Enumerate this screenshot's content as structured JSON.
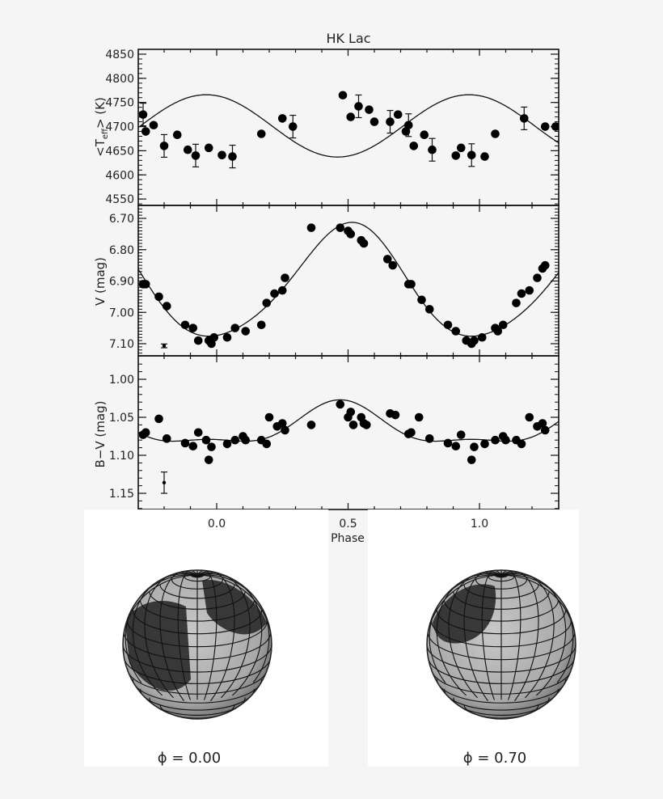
{
  "figure": {
    "title": "HK Lac",
    "xlabel": "Phase",
    "x_ticks": [
      "0.0",
      "0.5",
      "1.0"
    ],
    "x_tick_values": [
      0.0,
      0.5,
      1.0
    ],
    "xlim": [
      -0.3,
      1.3
    ]
  },
  "panels": [
    {
      "id": "teff",
      "ylabel_main": "<T",
      "ylabel_sub": "eff",
      "ylabel_tail": "> (K)",
      "y_ticks": [
        "4850",
        "4800",
        "4750",
        "4700",
        "4650",
        "4600",
        "4550"
      ]
    },
    {
      "id": "v",
      "ylabel": "V (mag)",
      "y_ticks": [
        "6.70",
        "6.80",
        "6.90",
        "7.00",
        "7.10"
      ]
    },
    {
      "id": "bv",
      "ylabel": "B−V (mag)",
      "y_ticks": [
        "1.00",
        "1.05",
        "1.10",
        "1.15"
      ]
    }
  ],
  "globes": [
    {
      "label": "ϕ = 0.00",
      "phase": 0.0
    },
    {
      "label": "ϕ = 0.70",
      "phase": 0.7
    }
  ],
  "chart_data": [
    {
      "type": "scatter",
      "title": "HK Lac",
      "xlabel": "Phase",
      "ylabel": "<T_eff> (K)",
      "xlim": [
        -0.3,
        1.3
      ],
      "ylim": [
        4540,
        4860
      ],
      "grid": false,
      "series": [
        {
          "name": "observations",
          "x": [
            -0.28,
            -0.27,
            -0.24,
            -0.2,
            -0.15,
            -0.11,
            -0.08,
            -0.03,
            0.02,
            0.06,
            0.17,
            0.25,
            0.29,
            0.48,
            0.51,
            0.54,
            0.58,
            0.6,
            0.66,
            0.69,
            0.72,
            0.73,
            0.75,
            0.79,
            0.82,
            0.91,
            0.93,
            0.97,
            1.02,
            1.06,
            1.17,
            1.25,
            1.29
          ],
          "y": [
            4725,
            4690,
            4703,
            4660,
            4683,
            4652,
            4640,
            4656,
            4641,
            4638,
            4685,
            4717,
            4700,
            4765,
            4720,
            4742,
            4735,
            4710,
            4710,
            4725,
            4690,
            4703,
            4660,
            4683,
            4652,
            4640,
            4656,
            4641,
            4638,
            4685,
            4717,
            4700,
            4700
          ]
        },
        {
          "name": "model",
          "kind": "line",
          "min": 4637,
          "max": 4766,
          "min_phase": 0.0,
          "max_phase": 0.46
        }
      ]
    },
    {
      "type": "scatter",
      "xlabel": "Phase",
      "ylabel": "V (mag)",
      "xlim": [
        -0.3,
        1.3
      ],
      "ylim": [
        7.13,
        6.68
      ],
      "y_inverted": true,
      "series": [
        {
          "name": "observations",
          "x": [
            -0.28,
            -0.27,
            -0.22,
            -0.19,
            -0.12,
            -0.09,
            -0.07,
            -0.03,
            -0.02,
            -0.01,
            0.04,
            0.07,
            0.11,
            0.17,
            0.19,
            0.22,
            0.25,
            0.26,
            0.36,
            0.47,
            0.5,
            0.51,
            0.55,
            0.56,
            0.65,
            0.67,
            0.73,
            0.74,
            0.78,
            0.81,
            0.88,
            0.91,
            0.95,
            0.97,
            0.98,
            1.01,
            1.06,
            1.07,
            1.09,
            1.14,
            1.16,
            1.19,
            1.22,
            1.24,
            1.25
          ],
          "y": [
            6.91,
            6.91,
            6.95,
            6.98,
            7.04,
            7.05,
            7.09,
            7.09,
            7.1,
            7.08,
            7.08,
            7.05,
            7.06,
            7.04,
            6.97,
            6.94,
            6.93,
            6.89,
            6.73,
            6.73,
            6.74,
            6.75,
            6.77,
            6.78,
            6.83,
            6.85,
            6.91,
            6.91,
            6.96,
            6.99,
            7.04,
            7.06,
            7.09,
            7.1,
            7.09,
            7.08,
            7.05,
            7.06,
            7.04,
            6.97,
            6.94,
            6.93,
            6.89,
            6.86,
            6.85
          ]
        },
        {
          "name": "model",
          "kind": "line",
          "min_mag": 7.09,
          "max_mag": 6.73,
          "min_phase": 0.01,
          "max_phase": 0.46
        },
        {
          "name": "typical_error",
          "x": -0.2,
          "y": 7.107,
          "err": 0.006
        }
      ]
    },
    {
      "type": "scatter",
      "xlabel": "Phase",
      "ylabel": "B−V (mag)",
      "xlim": [
        -0.3,
        1.3
      ],
      "ylim": [
        1.17,
        0.98
      ],
      "y_inverted": true,
      "series": [
        {
          "name": "observations",
          "x": [
            -0.28,
            -0.27,
            -0.22,
            -0.19,
            -0.12,
            -0.09,
            -0.07,
            -0.04,
            -0.03,
            -0.02,
            0.04,
            0.07,
            0.1,
            0.11,
            0.17,
            0.19,
            0.2,
            0.23,
            0.25,
            0.26,
            0.36,
            0.47,
            0.5,
            0.51,
            0.52,
            0.55,
            0.56,
            0.57,
            0.66,
            0.68,
            0.73,
            0.74,
            0.77,
            0.81,
            0.88,
            0.91,
            0.93,
            0.97,
            0.98,
            1.02,
            1.06,
            1.09,
            1.1,
            1.14,
            1.16,
            1.19,
            1.22,
            1.24,
            1.25
          ],
          "y": [
            1.073,
            1.07,
            1.052,
            1.078,
            1.084,
            1.088,
            1.07,
            1.08,
            1.106,
            1.089,
            1.085,
            1.08,
            1.075,
            1.08,
            1.08,
            1.085,
            1.05,
            1.062,
            1.058,
            1.067,
            1.06,
            1.033,
            1.05,
            1.043,
            1.06,
            1.05,
            1.058,
            1.06,
            1.045,
            1.047,
            1.072,
            1.07,
            1.05,
            1.078,
            1.084,
            1.088,
            1.073,
            1.106,
            1.089,
            1.085,
            1.08,
            1.075,
            1.08,
            1.08,
            1.085,
            1.05,
            1.062,
            1.058,
            1.067
          ]
        },
        {
          "name": "model",
          "kind": "line",
          "min": 1.089,
          "max": 1.037
        },
        {
          "name": "typical_error",
          "x": -0.2,
          "y": 1.136,
          "err": 0.014
        }
      ]
    }
  ]
}
